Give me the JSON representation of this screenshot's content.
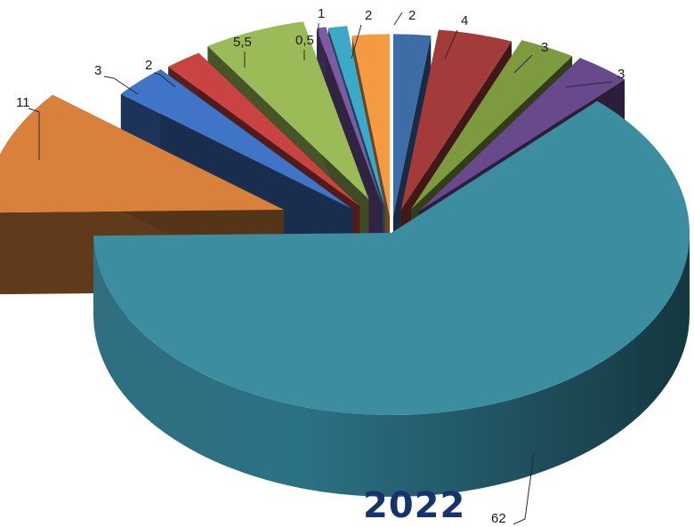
{
  "chart_data": {
    "type": "pie",
    "style": "3d-exploded",
    "title": "2022",
    "values": [
      2,
      4,
      3,
      3,
      62,
      11,
      3,
      2,
      5.5,
      0.5,
      1,
      2
    ],
    "value_labels": [
      "2",
      "4",
      "3",
      "3",
      "62",
      "11",
      "3",
      "2",
      "5,5",
      "0,5",
      "1",
      "2"
    ],
    "colors": [
      "#3e6ca6",
      "#a33b3b",
      "#7e9a3e",
      "#684a8c",
      "#3d8da0",
      "#d7813c",
      "#3f74c6",
      "#c94343",
      "#9bbb59",
      "#7b5aa6",
      "#3ca9c8",
      "#f39a42"
    ],
    "legend": "none"
  }
}
